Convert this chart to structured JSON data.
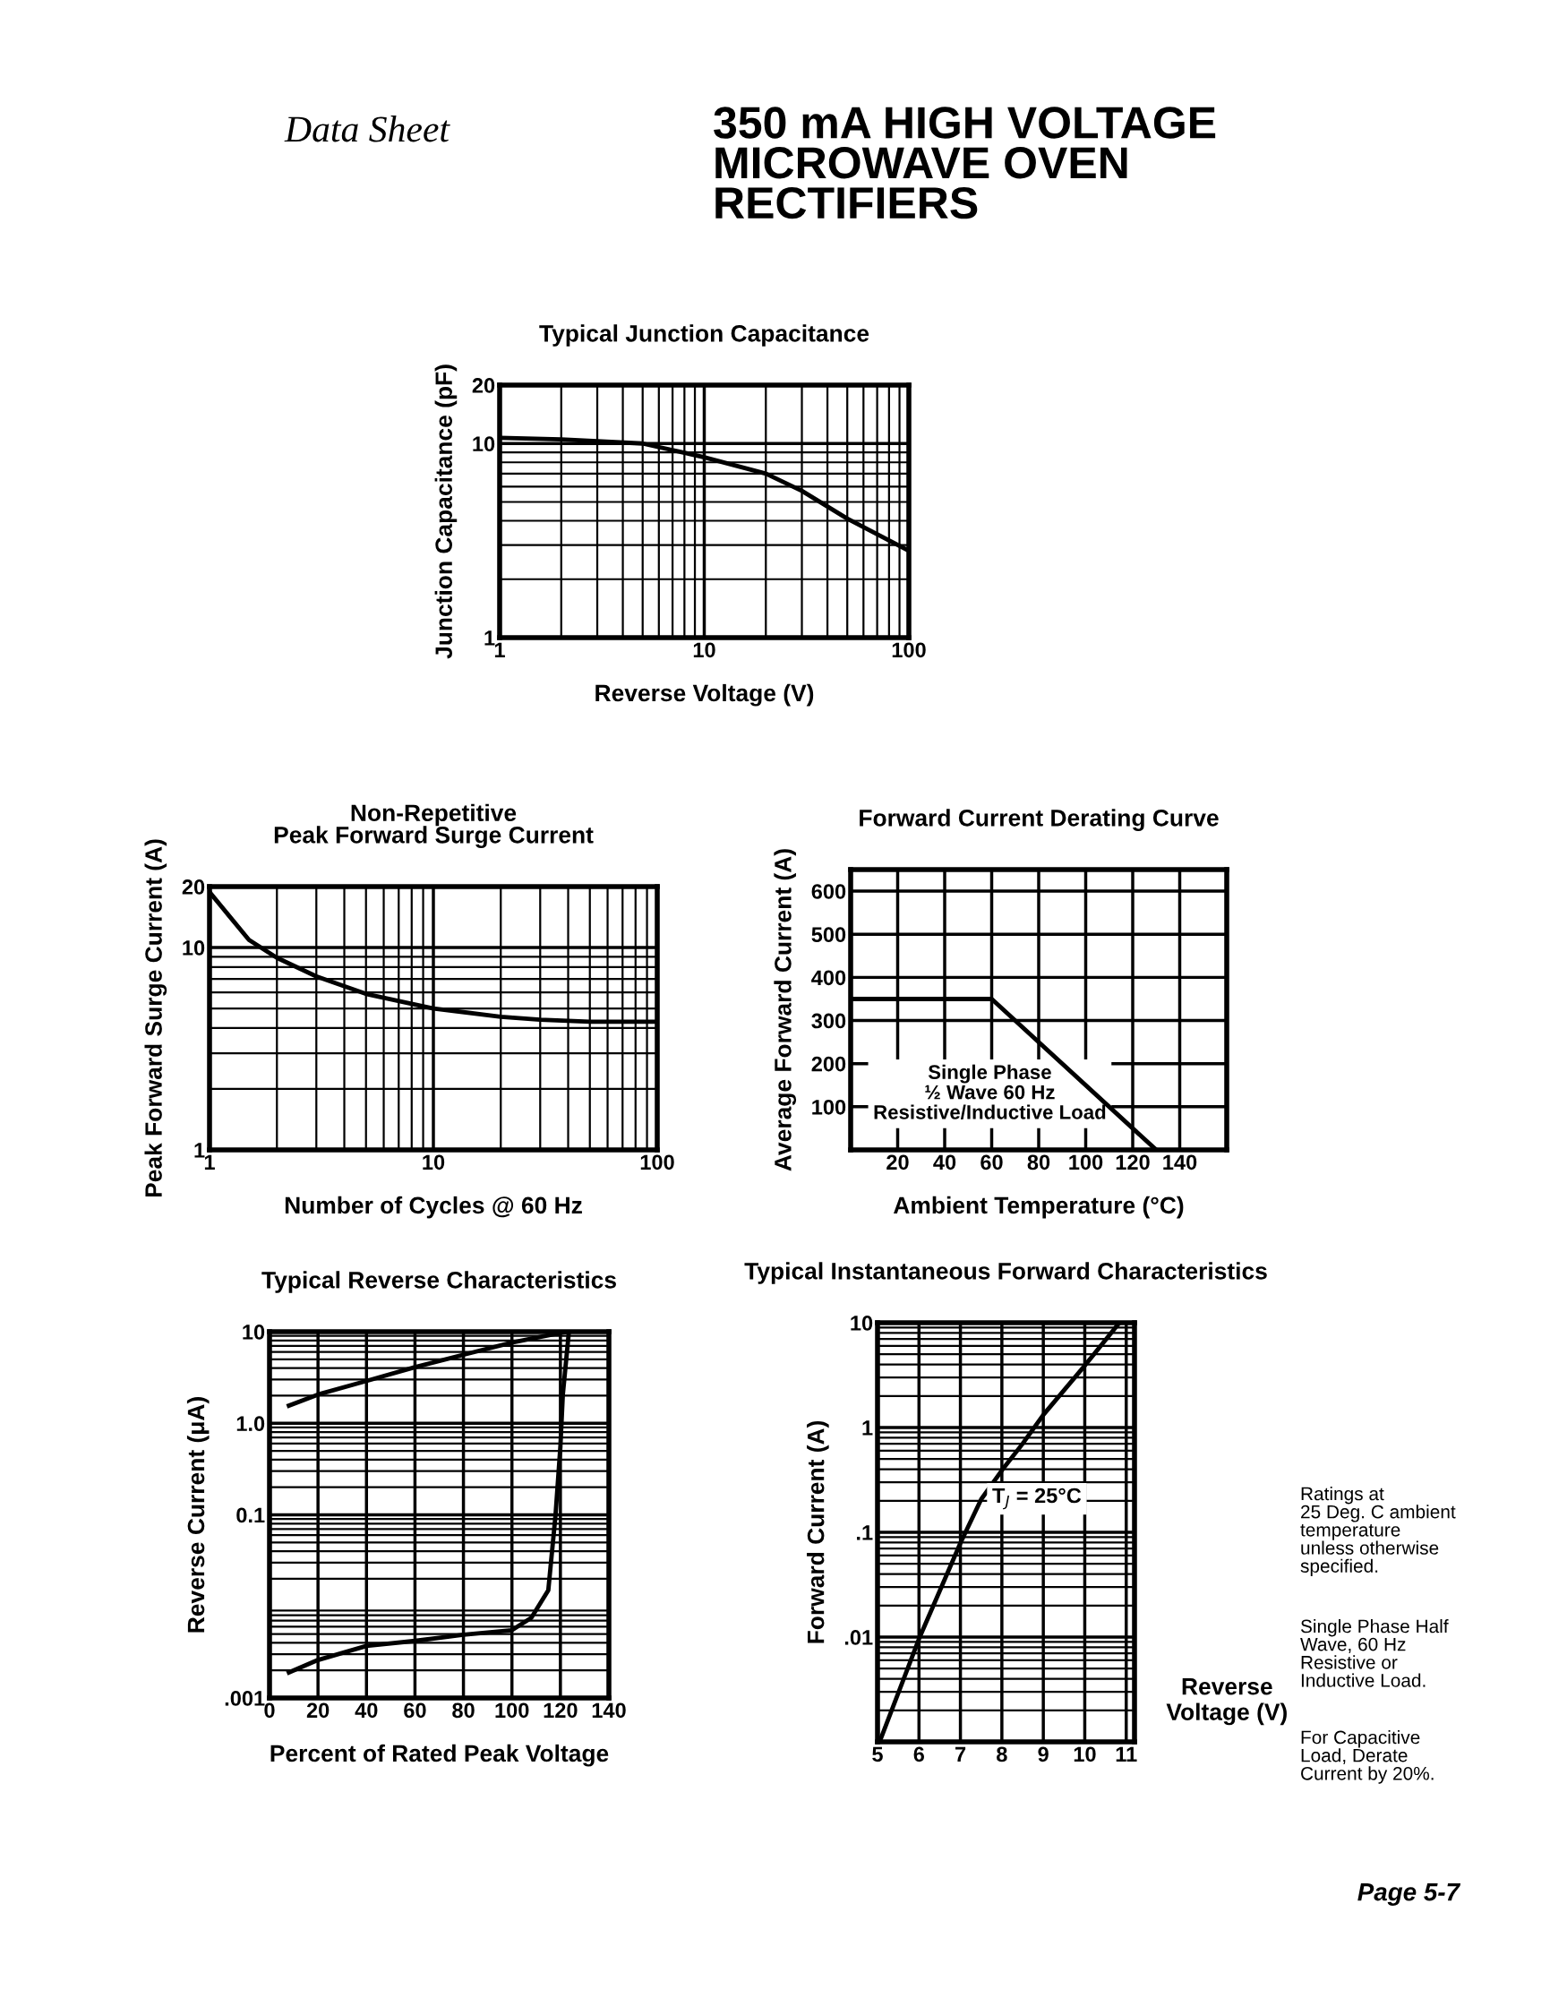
{
  "chart_data": [
    {
      "type": "other",
      "title": "350 mA HIGH VOLTAGE\nMICROWAVE OVEN\nRECTIFIERS",
      "subtitle": "Data Sheet",
      "annotations": [
        "Ratings at\n25 Deg. C ambient\ntemperature\nunless otherwise\nspecified.",
        "Single Phase Half\nWave, 60 Hz\nResistive or\nInductive Load.",
        "For Capacitive\nLoad, Derate\nCurrent by 20%.",
        "Page 5-7"
      ]
    },
    {
      "type": "line",
      "title": "Typical Junction Capacitance",
      "xlabel": "Reverse Voltage (V)",
      "ylabel": "Junction Capacitance (pF)",
      "log": "xy",
      "x": [
        1,
        2,
        5,
        10,
        20,
        30,
        50,
        100
      ],
      "values": [
        10.7,
        10.5,
        10,
        8.5,
        7.0,
        5.7,
        4.1,
        2.8
      ],
      "color": "#000000",
      "xlim": [
        1,
        100
      ],
      "ylim": [
        1,
        20
      ],
      "xticks": [
        1,
        10,
        100
      ],
      "yticks": [
        1,
        10,
        20
      ],
      "grid": true
    },
    {
      "type": "line",
      "title": "Non-Repetitive\nPeak Forward Surge Current",
      "xlabel": "Number of Cycles @ 60 Hz",
      "ylabel": "Peak Forward Surge Current (A)",
      "log": "xy",
      "x": [
        1,
        1.5,
        2,
        3,
        5,
        10,
        20,
        30,
        50,
        100
      ],
      "values": [
        18.8,
        10.9,
        8.9,
        7.2,
        5.9,
        5.0,
        4.55,
        4.4,
        4.3,
        4.3
      ],
      "color": "#000000",
      "xlim": [
        1,
        100
      ],
      "ylim": [
        1,
        20
      ],
      "xticks": [
        1,
        10,
        100
      ],
      "yticks": [
        1,
        10,
        20
      ],
      "grid": true
    },
    {
      "type": "line",
      "title": "Forward Current Derating Curve",
      "xlabel": "Ambient Temperature (°C)",
      "ylabel": "Average Forward Current (A)",
      "x": [
        0,
        60,
        130
      ],
      "values": [
        350,
        350,
        0
      ],
      "color": "#000000",
      "xlim": [
        0,
        160
      ],
      "ylim": [
        0,
        650
      ],
      "xticks": [
        20,
        40,
        60,
        80,
        100,
        120,
        140
      ],
      "yticks": [
        100,
        200,
        300,
        400,
        500,
        600
      ],
      "grid": true,
      "annotations": [
        "Single Phase\n½ Wave 60 Hz\nResistive/Inductive Load"
      ]
    },
    {
      "type": "line",
      "title": "Typical Reverse Characteristics",
      "xlabel": "Percent of Rated Peak Voltage",
      "ylabel": "Reverse Current (μA)",
      "log": "y",
      "series": [
        {
          "color": "#000000",
          "x": [
            8,
            20,
            40,
            60,
            80,
            100,
            120,
            123
          ],
          "values": [
            1.56,
            2.06,
            2.9,
            4.1,
            5.6,
            7.6,
            9.7,
            10
          ]
        },
        {
          "color": "#000000",
          "x": [
            8,
            20,
            40,
            60,
            80,
            100,
            108,
            115,
            118,
            120,
            121,
            123.5
          ],
          "values": [
            0.0019,
            0.0026,
            0.0037,
            0.0042,
            0.0049,
            0.0055,
            0.0075,
            0.015,
            0.1,
            0.56,
            2.06,
            10
          ]
        }
      ],
      "xlim": [
        0,
        140
      ],
      "ylim": [
        0.001,
        10
      ],
      "xticks": [
        0,
        20,
        40,
        60,
        80,
        100,
        120,
        140
      ],
      "yticks": [
        {
          "value": 0.001,
          "label": ".001"
        },
        {
          "value": 0.1,
          "label": "0.1"
        },
        {
          "value": 1,
          "label": "1.0"
        },
        10
      ],
      "grid": true
    },
    {
      "type": "line",
      "title": "Typical Instantaneous Forward Characteristics",
      "xlabel": "Reverse\nVoltage (V)",
      "ylabel": "Forward Current (A)",
      "log": "y",
      "x": [
        5.05,
        6,
        7,
        7.5,
        8,
        8.5,
        9,
        10,
        10.8
      ],
      "values": [
        0.001,
        0.0096,
        0.079,
        0.206,
        0.39,
        0.7,
        1.32,
        3.9,
        9.6
      ],
      "color": "#000000",
      "xlim": [
        5,
        11.2
      ],
      "ylim": [
        0.001,
        10
      ],
      "xticks": [
        5,
        6,
        7,
        8,
        9,
        10,
        11
      ],
      "yticks": [
        {
          "value": 0.01,
          "label": ".01"
        },
        {
          "value": 0.1,
          "label": ".1"
        },
        1,
        10
      ],
      "grid": true,
      "annotations": [
        "T$_{J}$ = 25°C"
      ]
    }
  ]
}
